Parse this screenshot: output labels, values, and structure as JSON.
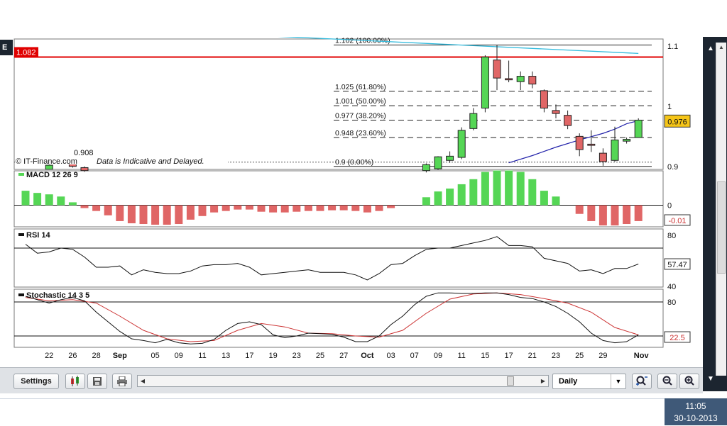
{
  "window": {
    "corner_label": "E"
  },
  "watermark": "© IT-Finance.com",
  "disclaimer": "Data is Indicative and Delayed.",
  "colors": {
    "bull": "#55d655",
    "bear": "#e06666",
    "level_line": "#e00000",
    "trend_line": "#33bbdd",
    "ma_line": "#2222aa",
    "price_box": "#f5c518",
    "signal_line": "#cc3333"
  },
  "chart_data": [
    {
      "type": "candlestick",
      "panel": "price",
      "x_tick_labels": [
        "22",
        "26",
        "28",
        "Sep",
        "05",
        "09",
        "11",
        "13",
        "17",
        "19",
        "23",
        "25",
        "27",
        "Oct",
        "03",
        "07",
        "09",
        "11",
        "15",
        "17",
        "21",
        "23",
        "25",
        "29",
        "Nov"
      ],
      "y_tick_labels": [
        "1.1",
        "1",
        "0.9"
      ],
      "ylim": [
        0.895,
        1.112
      ],
      "current_price": "0.976",
      "level_line": {
        "label": "1.082",
        "value": 1.082
      },
      "low_marker": {
        "label": "0.908",
        "value": 0.908
      },
      "fibonacci": [
        {
          "label": "1.102 (100.00%)",
          "value": 1.102
        },
        {
          "label": "1.025 (61.80%)",
          "value": 1.025
        },
        {
          "label": "1.001 (50.00%)",
          "value": 1.001
        },
        {
          "label": "0.977 (38.20%)",
          "value": 0.977
        },
        {
          "label": "0.948 (23.60%)",
          "value": 0.948
        },
        {
          "label": "0.9 (0.00%)",
          "value": 0.9
        }
      ],
      "trendline": [
        {
          "i": -3,
          "v": 1.137
        },
        {
          "i": 52,
          "v": 1.088
        }
      ],
      "moving_average": [
        {
          "i": 41,
          "v": 0.906
        },
        {
          "i": 43,
          "v": 0.918
        },
        {
          "i": 45,
          "v": 0.932
        },
        {
          "i": 47,
          "v": 0.944
        },
        {
          "i": 49,
          "v": 0.955
        },
        {
          "i": 50,
          "v": 0.962
        },
        {
          "i": 51,
          "v": 0.971
        },
        {
          "i": 52,
          "v": 0.976
        }
      ],
      "candles": [
        {
          "i": 2,
          "o": 0.895,
          "c": 0.902,
          "h": 0.906,
          "l": 0.895
        },
        {
          "i": 4,
          "o": 0.906,
          "c": 0.9,
          "h": 0.909,
          "l": 0.898
        },
        {
          "i": 5,
          "o": 0.898,
          "c": 0.893,
          "h": 0.9,
          "l": 0.891
        },
        {
          "i": 34,
          "o": 0.893,
          "c": 0.903,
          "h": 0.905,
          "l": 0.89
        },
        {
          "i": 35,
          "o": 0.896,
          "c": 0.916,
          "h": 0.917,
          "l": 0.894
        },
        {
          "i": 36,
          "o": 0.91,
          "c": 0.917,
          "h": 0.925,
          "l": 0.906
        },
        {
          "i": 37,
          "o": 0.915,
          "c": 0.96,
          "h": 0.965,
          "l": 0.912
        },
        {
          "i": 38,
          "o": 0.963,
          "c": 0.988,
          "h": 0.997,
          "l": 0.96
        },
        {
          "i": 39,
          "o": 0.997,
          "c": 1.082,
          "h": 1.085,
          "l": 0.99
        },
        {
          "i": 40,
          "o": 1.077,
          "c": 1.047,
          "h": 1.102,
          "l": 1.027
        },
        {
          "i": 41,
          "o": 1.046,
          "c": 1.044,
          "h": 1.076,
          "l": 1.04
        },
        {
          "i": 42,
          "o": 1.041,
          "c": 1.05,
          "h": 1.058,
          "l": 1.027
        },
        {
          "i": 43,
          "o": 1.05,
          "c": 1.037,
          "h": 1.058,
          "l": 1.03
        },
        {
          "i": 44,
          "o": 1.026,
          "c": 0.997,
          "h": 1.028,
          "l": 0.99
        },
        {
          "i": 45,
          "o": 0.993,
          "c": 0.988,
          "h": 1.003,
          "l": 0.98
        },
        {
          "i": 46,
          "o": 0.985,
          "c": 0.968,
          "h": 0.993,
          "l": 0.962
        },
        {
          "i": 47,
          "o": 0.95,
          "c": 0.928,
          "h": 0.955,
          "l": 0.917
        },
        {
          "i": 48,
          "o": 0.937,
          "c": 0.935,
          "h": 0.96,
          "l": 0.924
        },
        {
          "i": 49,
          "o": 0.922,
          "c": 0.908,
          "h": 0.93,
          "l": 0.901
        },
        {
          "i": 50,
          "o": 0.91,
          "c": 0.944,
          "h": 0.966,
          "l": 0.908
        },
        {
          "i": 51,
          "o": 0.942,
          "c": 0.945,
          "h": 0.948,
          "l": 0.938
        },
        {
          "i": 52,
          "o": 0.948,
          "c": 0.977,
          "h": 0.98,
          "l": 0.948
        }
      ]
    },
    {
      "type": "bar",
      "panel": "macd",
      "name": "MACD 12 26 9",
      "y_tick_labels": [
        "0"
      ],
      "current_value": "-0.01",
      "values": [
        {
          "i": 0,
          "v": 2.0
        },
        {
          "i": 1,
          "v": 1.7
        },
        {
          "i": 2,
          "v": 1.5
        },
        {
          "i": 3,
          "v": 1.2
        },
        {
          "i": 4,
          "v": 0.4
        },
        {
          "i": 5,
          "v": -0.4
        },
        {
          "i": 6,
          "v": -0.8
        },
        {
          "i": 7,
          "v": -1.4
        },
        {
          "i": 8,
          "v": -2.2
        },
        {
          "i": 9,
          "v": -2.5
        },
        {
          "i": 10,
          "v": -2.6
        },
        {
          "i": 11,
          "v": -2.7
        },
        {
          "i": 12,
          "v": -2.7
        },
        {
          "i": 13,
          "v": -2.6
        },
        {
          "i": 14,
          "v": -2.0
        },
        {
          "i": 15,
          "v": -1.5
        },
        {
          "i": 16,
          "v": -1.0
        },
        {
          "i": 17,
          "v": -0.8
        },
        {
          "i": 18,
          "v": -0.6
        },
        {
          "i": 19,
          "v": -0.6
        },
        {
          "i": 20,
          "v": -0.9
        },
        {
          "i": 21,
          "v": -1.0
        },
        {
          "i": 22,
          "v": -1.0
        },
        {
          "i": 23,
          "v": -0.9
        },
        {
          "i": 24,
          "v": -0.8
        },
        {
          "i": 25,
          "v": -0.8
        },
        {
          "i": 26,
          "v": -0.7
        },
        {
          "i": 27,
          "v": -0.7
        },
        {
          "i": 28,
          "v": -0.8
        },
        {
          "i": 29,
          "v": -1.0
        },
        {
          "i": 30,
          "v": -0.8
        },
        {
          "i": 31,
          "v": -0.4
        },
        {
          "i": 34,
          "v": 1.1
        },
        {
          "i": 35,
          "v": 1.9
        },
        {
          "i": 36,
          "v": 2.3
        },
        {
          "i": 37,
          "v": 2.9
        },
        {
          "i": 38,
          "v": 3.6
        },
        {
          "i": 39,
          "v": 4.6
        },
        {
          "i": 40,
          "v": 4.8
        },
        {
          "i": 41,
          "v": 4.8
        },
        {
          "i": 42,
          "v": 4.6
        },
        {
          "i": 43,
          "v": 3.6
        },
        {
          "i": 44,
          "v": 2.0
        },
        {
          "i": 45,
          "v": 1.2
        },
        {
          "i": 47,
          "v": -1.2
        },
        {
          "i": 48,
          "v": -2.2
        },
        {
          "i": 49,
          "v": -2.8
        },
        {
          "i": 50,
          "v": -2.8
        },
        {
          "i": 51,
          "v": -2.6
        },
        {
          "i": 52,
          "v": -2.2
        }
      ]
    },
    {
      "type": "line",
      "panel": "rsi",
      "name": "RSI 14",
      "y_tick_labels": [
        "80",
        "40"
      ],
      "ylim": [
        40,
        80
      ],
      "reference_line": 70,
      "current_value": "57.47",
      "values": [
        {
          "i": 0,
          "v": 73
        },
        {
          "i": 1,
          "v": 66
        },
        {
          "i": 2,
          "v": 67
        },
        {
          "i": 3,
          "v": 70
        },
        {
          "i": 4,
          "v": 69
        },
        {
          "i": 5,
          "v": 63
        },
        {
          "i": 6,
          "v": 55
        },
        {
          "i": 7,
          "v": 55
        },
        {
          "i": 8,
          "v": 56
        },
        {
          "i": 9,
          "v": 49
        },
        {
          "i": 10,
          "v": 53
        },
        {
          "i": 11,
          "v": 51
        },
        {
          "i": 12,
          "v": 50
        },
        {
          "i": 13,
          "v": 50
        },
        {
          "i": 14,
          "v": 52
        },
        {
          "i": 15,
          "v": 56
        },
        {
          "i": 16,
          "v": 57
        },
        {
          "i": 17,
          "v": 57
        },
        {
          "i": 18,
          "v": 58
        },
        {
          "i": 19,
          "v": 55
        },
        {
          "i": 20,
          "v": 49
        },
        {
          "i": 21,
          "v": 50
        },
        {
          "i": 22,
          "v": 51
        },
        {
          "i": 23,
          "v": 52
        },
        {
          "i": 24,
          "v": 53
        },
        {
          "i": 25,
          "v": 51
        },
        {
          "i": 26,
          "v": 51
        },
        {
          "i": 27,
          "v": 51
        },
        {
          "i": 28,
          "v": 49
        },
        {
          "i": 29,
          "v": 45
        },
        {
          "i": 30,
          "v": 50
        },
        {
          "i": 31,
          "v": 57
        },
        {
          "i": 32,
          "v": 58
        },
        {
          "i": 33,
          "v": 64
        },
        {
          "i": 34,
          "v": 69
        },
        {
          "i": 35,
          "v": 70
        },
        {
          "i": 36,
          "v": 70
        },
        {
          "i": 37,
          "v": 72
        },
        {
          "i": 38,
          "v": 74
        },
        {
          "i": 39,
          "v": 76
        },
        {
          "i": 40,
          "v": 79
        },
        {
          "i": 41,
          "v": 72
        },
        {
          "i": 42,
          "v": 72
        },
        {
          "i": 43,
          "v": 71
        },
        {
          "i": 44,
          "v": 62
        },
        {
          "i": 45,
          "v": 60
        },
        {
          "i": 46,
          "v": 58
        },
        {
          "i": 47,
          "v": 52
        },
        {
          "i": 48,
          "v": 53
        },
        {
          "i": 49,
          "v": 50
        },
        {
          "i": 50,
          "v": 54
        },
        {
          "i": 51,
          "v": 54
        },
        {
          "i": 52,
          "v": 57.5
        }
      ]
    },
    {
      "type": "line",
      "panel": "stochastic",
      "name": "Stochastic 14 3 5",
      "y_tick_labels": [
        "80"
      ],
      "reference_lines": [
        80,
        20
      ],
      "current_value": "22.5",
      "series": [
        {
          "values": [
            {
              "i": 0,
              "v": 90
            },
            {
              "i": 1,
              "v": 84
            },
            {
              "i": 2,
              "v": 78
            },
            {
              "i": 3,
              "v": 84
            },
            {
              "i": 4,
              "v": 88
            },
            {
              "i": 5,
              "v": 82
            },
            {
              "i": 6,
              "v": 62
            },
            {
              "i": 7,
              "v": 45
            },
            {
              "i": 8,
              "v": 28
            },
            {
              "i": 9,
              "v": 15
            },
            {
              "i": 10,
              "v": 12
            },
            {
              "i": 11,
              "v": 8
            },
            {
              "i": 12,
              "v": 14
            },
            {
              "i": 13,
              "v": 8
            },
            {
              "i": 14,
              "v": 6
            },
            {
              "i": 15,
              "v": 7
            },
            {
              "i": 16,
              "v": 14
            },
            {
              "i": 17,
              "v": 30
            },
            {
              "i": 18,
              "v": 42
            },
            {
              "i": 19,
              "v": 45
            },
            {
              "i": 20,
              "v": 40
            },
            {
              "i": 21,
              "v": 22
            },
            {
              "i": 22,
              "v": 17
            },
            {
              "i": 23,
              "v": 20
            },
            {
              "i": 24,
              "v": 25
            },
            {
              "i": 25,
              "v": 24
            },
            {
              "i": 26,
              "v": 23
            },
            {
              "i": 27,
              "v": 18
            },
            {
              "i": 28,
              "v": 10
            },
            {
              "i": 29,
              "v": 10
            },
            {
              "i": 30,
              "v": 20
            },
            {
              "i": 31,
              "v": 40
            },
            {
              "i": 32,
              "v": 55
            },
            {
              "i": 33,
              "v": 75
            },
            {
              "i": 34,
              "v": 90
            },
            {
              "i": 35,
              "v": 96
            },
            {
              "i": 36,
              "v": 96
            },
            {
              "i": 37,
              "v": 95
            },
            {
              "i": 38,
              "v": 95
            },
            {
              "i": 39,
              "v": 96
            },
            {
              "i": 40,
              "v": 96
            },
            {
              "i": 41,
              "v": 93
            },
            {
              "i": 42,
              "v": 88
            },
            {
              "i": 43,
              "v": 86
            },
            {
              "i": 44,
              "v": 80
            },
            {
              "i": 45,
              "v": 72
            },
            {
              "i": 46,
              "v": 60
            },
            {
              "i": 47,
              "v": 45
            },
            {
              "i": 48,
              "v": 25
            },
            {
              "i": 49,
              "v": 12
            },
            {
              "i": 50,
              "v": 8
            },
            {
              "i": 51,
              "v": 10
            },
            {
              "i": 52,
              "v": 22
            }
          ]
        },
        {
          "values": [
            {
              "i": 0,
              "v": 88
            },
            {
              "i": 2,
              "v": 82
            },
            {
              "i": 4,
              "v": 84
            },
            {
              "i": 6,
              "v": 78
            },
            {
              "i": 8,
              "v": 55
            },
            {
              "i": 10,
              "v": 30
            },
            {
              "i": 12,
              "v": 15
            },
            {
              "i": 14,
              "v": 10
            },
            {
              "i": 16,
              "v": 12
            },
            {
              "i": 18,
              "v": 30
            },
            {
              "i": 20,
              "v": 42
            },
            {
              "i": 22,
              "v": 36
            },
            {
              "i": 24,
              "v": 25
            },
            {
              "i": 26,
              "v": 24
            },
            {
              "i": 28,
              "v": 20
            },
            {
              "i": 30,
              "v": 18
            },
            {
              "i": 32,
              "v": 30
            },
            {
              "i": 34,
              "v": 60
            },
            {
              "i": 36,
              "v": 85
            },
            {
              "i": 38,
              "v": 94
            },
            {
              "i": 40,
              "v": 96
            },
            {
              "i": 42,
              "v": 93
            },
            {
              "i": 44,
              "v": 86
            },
            {
              "i": 46,
              "v": 78
            },
            {
              "i": 48,
              "v": 62
            },
            {
              "i": 50,
              "v": 35
            },
            {
              "i": 52,
              "v": 22
            }
          ]
        }
      ]
    }
  ],
  "toolbar": {
    "settings_label": "Settings",
    "period_value": "Daily",
    "icons": [
      "chart-type-icon",
      "save-icon",
      "print-icon",
      "zoom-fit-icon",
      "zoom-out-icon",
      "zoom-in-icon"
    ]
  },
  "taskbar": {
    "time": "11:05",
    "date": "30-10-2013"
  }
}
